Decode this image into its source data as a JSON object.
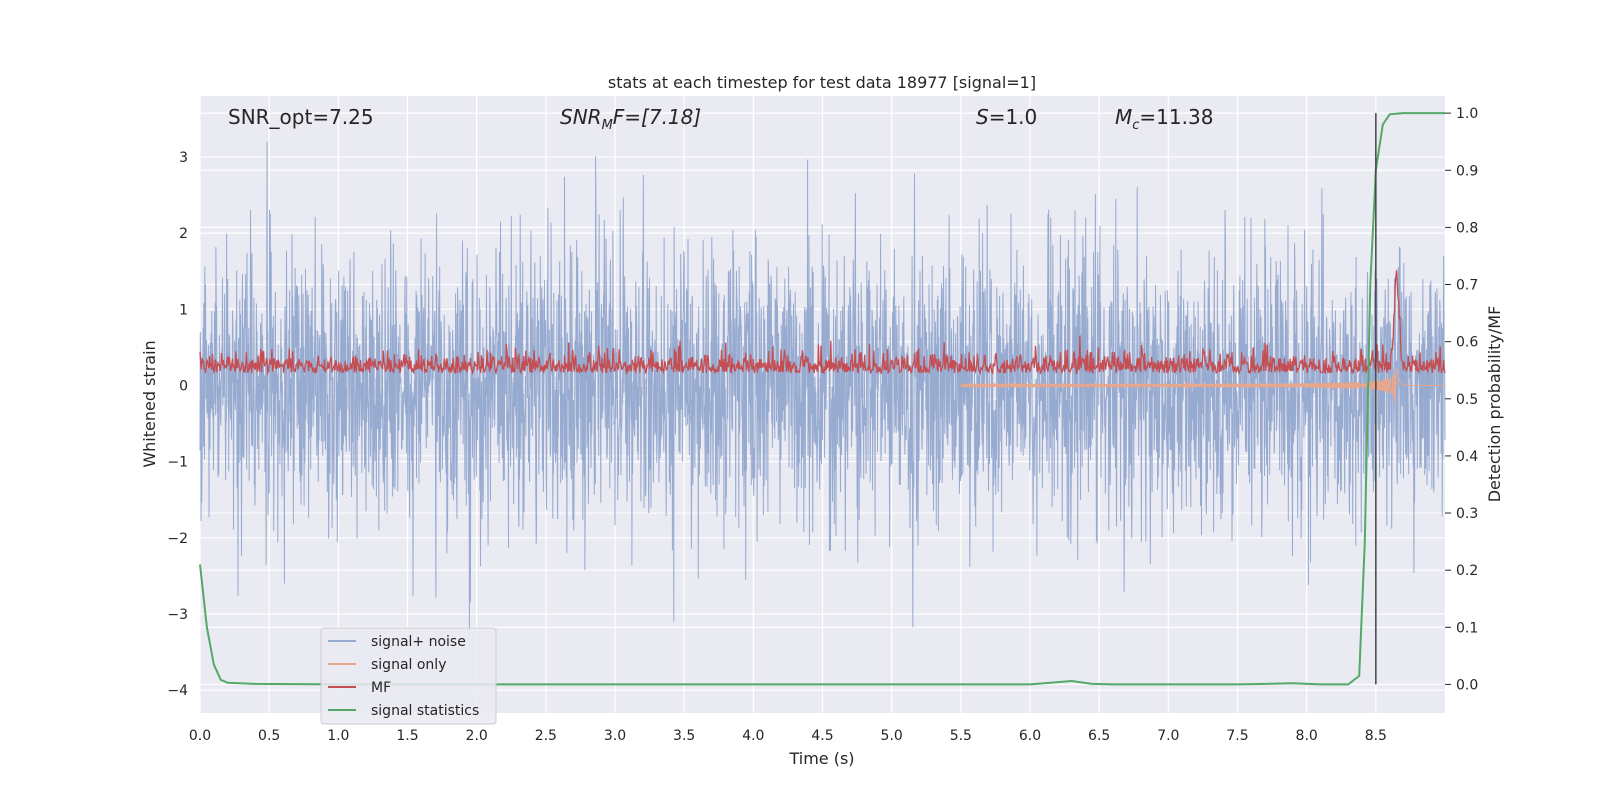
{
  "chart_data": {
    "type": "line",
    "title": "stats at each timestep for test data 18977 [signal=1]",
    "xlabel": "Time (s)",
    "ylabel_left": "Whitened strain",
    "ylabel_right": "Detection probability/MF",
    "xlim": [
      0,
      9.0
    ],
    "ylim_left": [
      -4.3,
      3.8
    ],
    "ylim_right": [
      -0.05,
      1.03
    ],
    "x_ticks": [
      "0.0",
      "0.5",
      "1.0",
      "1.5",
      "2.0",
      "2.5",
      "3.0",
      "3.5",
      "4.0",
      "4.5",
      "5.0",
      "5.5",
      "6.0",
      "6.5",
      "7.0",
      "7.5",
      "8.0",
      "8.5"
    ],
    "x_tick_values": [
      0,
      0.5,
      1.0,
      1.5,
      2.0,
      2.5,
      3.0,
      3.5,
      4.0,
      4.5,
      5.0,
      5.5,
      6.0,
      6.5,
      7.0,
      7.5,
      8.0,
      8.5
    ],
    "y_left_ticks": [
      "−4",
      "−3",
      "−2",
      "−1",
      "0",
      "1",
      "2",
      "3"
    ],
    "y_left_tick_values": [
      -4,
      -3,
      -2,
      -1,
      0,
      1,
      2,
      3
    ],
    "y_right_ticks": [
      "0.0",
      "0.1",
      "0.2",
      "0.3",
      "0.4",
      "0.5",
      "0.6",
      "0.7",
      "0.8",
      "0.9",
      "1.0"
    ],
    "y_right_tick_values": [
      0,
      0.1,
      0.2,
      0.3,
      0.4,
      0.5,
      0.6,
      0.7,
      0.8,
      0.9,
      1.0
    ],
    "grid": true,
    "legend_position": "lower-left",
    "annotations": {
      "snr_opt": "SNR_opt=7.25",
      "snr_mf_base": "SNR",
      "snr_mf_sub": "M",
      "snr_mf_rest": "F=[7.18]",
      "s_label": "S",
      "s_rest": "=1.0",
      "mc_base": "M",
      "mc_sub": "c",
      "mc_rest": "=11.38"
    },
    "series": [
      {
        "name": "signal+ noise",
        "color": "#97aad0",
        "axis": "left",
        "kind": "noise",
        "envelope_approx": [
          -2.0,
          2.0
        ],
        "peak_approx": [
          -3.6,
          3.45
        ]
      },
      {
        "name": "signal only",
        "color": "#e8a78c",
        "axis": "left",
        "kind": "chirp",
        "merger_time": 8.65,
        "amplitude_max_approx": 1.2
      },
      {
        "name": "MF",
        "color": "#c44e52",
        "axis": "right",
        "kind": "mf",
        "baseline_approx": 0.55,
        "peak_time": 8.65,
        "peak_value_approx": 0.7
      },
      {
        "name": "signal statistics",
        "color": "#55a868",
        "axis": "right",
        "kind": "statistic",
        "x": [
          0.0,
          0.05,
          0.1,
          0.15,
          0.2,
          0.4,
          1.0,
          2.0,
          3.0,
          4.0,
          5.0,
          5.5,
          6.0,
          6.15,
          6.3,
          6.45,
          6.6,
          7.0,
          7.5,
          7.7,
          7.9,
          8.1,
          8.3,
          8.38,
          8.42,
          8.46,
          8.5,
          8.55,
          8.6,
          8.7,
          8.8,
          9.0
        ],
        "y": [
          0.21,
          0.1,
          0.035,
          0.008,
          0.003,
          0.001,
          0.0,
          0.0,
          0.0,
          0.0,
          0.0,
          0.0,
          0.0,
          0.003,
          0.006,
          0.001,
          0.0,
          0.0,
          0.0,
          0.001,
          0.002,
          0.0,
          0.0,
          0.015,
          0.25,
          0.7,
          0.9,
          0.98,
          0.998,
          1.0,
          1.0,
          1.0
        ]
      }
    ],
    "vertical_marker": {
      "x": 8.5,
      "y_from": 0.0,
      "y_to": 1.0,
      "color": "#444444"
    }
  }
}
